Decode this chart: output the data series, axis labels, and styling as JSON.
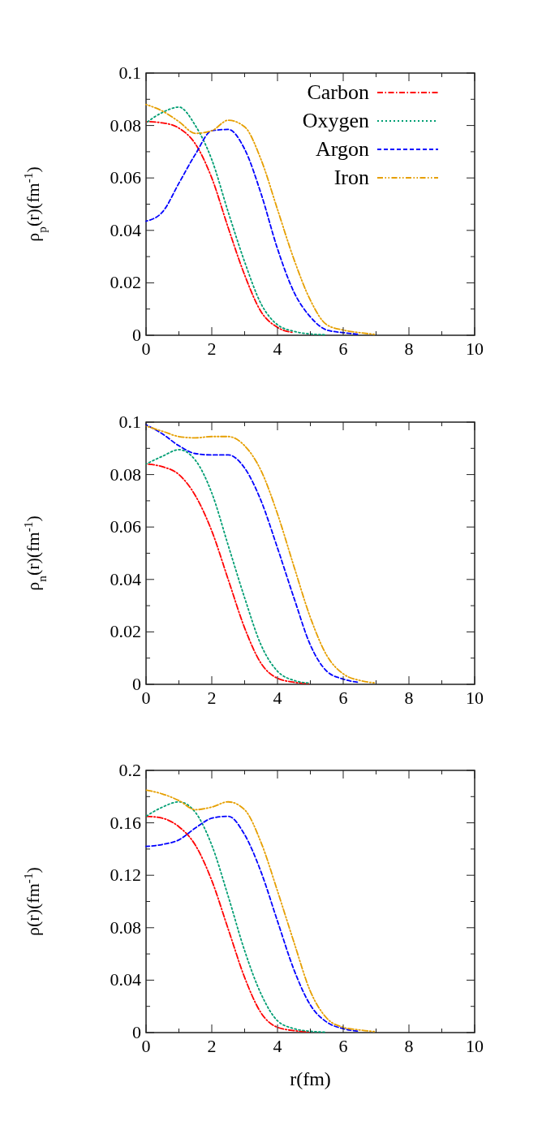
{
  "chart_data": [
    {
      "type": "line",
      "ylabel": "ρ$_{p}$(r)(fm$^{-1}$)",
      "x": [
        0,
        0.5,
        1,
        1.5,
        2,
        2.5,
        3,
        3.5,
        4,
        4.5,
        5,
        5.5,
        6,
        6.5,
        7
      ],
      "xlim": [
        0,
        10
      ],
      "ylim": [
        0,
        0.1
      ],
      "xticks": [
        0,
        {
          "value": 1,
          "label": null
        },
        2,
        {
          "value": 3,
          "label": null
        },
        4,
        {
          "value": 5,
          "label": null
        },
        6,
        {
          "value": 7,
          "label": null
        },
        8,
        {
          "value": 9,
          "label": null
        },
        10
      ],
      "yticks": [
        0,
        {
          "value": 0.01,
          "label": null
        },
        0.02,
        {
          "value": 0.03,
          "label": null
        },
        0.04,
        {
          "value": 0.05,
          "label": null
        },
        0.06,
        {
          "value": 0.07,
          "label": null
        },
        0.08,
        {
          "value": 0.09,
          "label": null
        },
        0.1
      ],
      "legend": "top right",
      "grid": false,
      "series": [
        {
          "name": "Carbon",
          "color": "#ff0000",
          "line_style": "dashdot",
          "values": [
            0.0815,
            0.081,
            0.079,
            0.073,
            0.06,
            0.041,
            0.023,
            0.009,
            0.003,
            0.001,
            null,
            null,
            null,
            null,
            null
          ]
        },
        {
          "name": "Oxygen",
          "color": "#009e73",
          "line_style": "dotted",
          "values": [
            0.081,
            0.085,
            0.087,
            0.08,
            0.067,
            0.047,
            0.028,
            0.012,
            0.004,
            0.0015,
            0.0005,
            0.0002,
            null,
            null,
            null
          ]
        },
        {
          "name": "Argon",
          "color": "#0000ff",
          "line_style": "dashed",
          "values": [
            0.0435,
            0.047,
            0.058,
            0.069,
            0.078,
            0.0785,
            0.071,
            0.054,
            0.033,
            0.0165,
            0.007,
            0.002,
            0.001,
            0.0003,
            null
          ]
        },
        {
          "name": "Iron",
          "color": "#e69f00",
          "line_style": "dashdotdot",
          "values": [
            0.088,
            0.0855,
            0.0815,
            0.077,
            0.078,
            0.082,
            0.0795,
            0.067,
            0.048,
            0.029,
            0.0134,
            0.004,
            0.002,
            0.001,
            0.0003
          ]
        }
      ]
    },
    {
      "type": "line",
      "ylabel": "ρ$_{n}$(r)(fm$^{-1}$)",
      "x": [
        0,
        0.5,
        1,
        1.5,
        2,
        2.5,
        3,
        3.5,
        4,
        4.5,
        5,
        5.5,
        6,
        6.5,
        7
      ],
      "xlim": [
        0,
        10
      ],
      "ylim": [
        0,
        0.1
      ],
      "xticks": [
        0,
        {
          "value": 1,
          "label": null
        },
        2,
        {
          "value": 3,
          "label": null
        },
        4,
        {
          "value": 5,
          "label": null
        },
        6,
        {
          "value": 7,
          "label": null
        },
        8,
        {
          "value": 9,
          "label": null
        },
        10
      ],
      "yticks": [
        0,
        {
          "value": 0.01,
          "label": null
        },
        0.02,
        {
          "value": 0.03,
          "label": null
        },
        0.04,
        {
          "value": 0.05,
          "label": null
        },
        0.06,
        {
          "value": 0.07,
          "label": null
        },
        0.08,
        {
          "value": 0.09,
          "label": null
        },
        0.1
      ],
      "grid": false,
      "series": [
        {
          "color": "#ff0000",
          "line_style": "dashdot",
          "values": [
            0.084,
            0.083,
            0.08,
            0.072,
            0.0585,
            0.04,
            0.0215,
            0.008,
            0.0023,
            0.0008,
            0.0002,
            null,
            null,
            null,
            null
          ]
        },
        {
          "color": "#009e73",
          "line_style": "dotted",
          "values": [
            0.084,
            0.087,
            0.0895,
            0.0855,
            0.073,
            0.053,
            0.033,
            0.015,
            0.005,
            0.0015,
            0.0004,
            null,
            null,
            null,
            null
          ]
        },
        {
          "color": "#0000ff",
          "line_style": "dashed",
          "values": [
            0.099,
            0.0955,
            0.091,
            0.088,
            0.0875,
            0.0875,
            0.0825,
            0.07,
            0.052,
            0.033,
            0.015,
            0.005,
            0.002,
            0.0007,
            null
          ]
        },
        {
          "color": "#e69f00",
          "line_style": "dashdotdot",
          "values": [
            0.0985,
            0.0965,
            0.0945,
            0.094,
            0.0945,
            0.0945,
            0.091,
            0.0815,
            0.065,
            0.045,
            0.0255,
            0.011,
            0.004,
            0.0015,
            0.0005
          ]
        }
      ]
    },
    {
      "type": "line",
      "xlabel": "r(fm)",
      "ylabel": "ρ(r)(fm$^{-1}$)",
      "x": [
        0,
        0.5,
        1,
        1.5,
        2,
        2.5,
        3,
        3.5,
        4,
        4.5,
        5,
        5.5,
        6,
        6.5,
        7
      ],
      "xlim": [
        0,
        10
      ],
      "ylim": [
        0,
        0.2
      ],
      "xticks": [
        0,
        {
          "value": 1,
          "label": null
        },
        2,
        {
          "value": 3,
          "label": null
        },
        4,
        {
          "value": 5,
          "label": null
        },
        6,
        {
          "value": 7,
          "label": null
        },
        8,
        {
          "value": 9,
          "label": null
        },
        10
      ],
      "yticks": [
        0,
        {
          "value": 0.02,
          "label": null
        },
        0.04,
        {
          "value": 0.06,
          "label": null
        },
        0.08,
        {
          "value": 0.1,
          "label": null
        },
        0.12,
        {
          "value": 0.14,
          "label": null
        },
        0.16,
        {
          "value": 0.18,
          "label": null
        },
        0.2
      ],
      "grid": false,
      "series": [
        {
          "color": "#ff0000",
          "line_style": "dashdot",
          "values": [
            0.165,
            0.1635,
            0.157,
            0.143,
            0.116,
            0.079,
            0.042,
            0.015,
            0.004,
            0.0015,
            0.0005,
            null,
            null,
            null,
            null
          ]
        },
        {
          "color": "#009e73",
          "line_style": "dotted",
          "values": [
            0.165,
            0.172,
            0.176,
            0.168,
            0.143,
            0.104,
            0.0625,
            0.0295,
            0.009,
            0.003,
            0.001,
            0.0003,
            null,
            null,
            null
          ]
        },
        {
          "color": "#0000ff",
          "line_style": "dashed",
          "values": [
            0.142,
            0.1435,
            0.147,
            0.156,
            0.1635,
            0.165,
            0.151,
            0.1225,
            0.085,
            0.048,
            0.021,
            0.008,
            0.003,
            0.001,
            null
          ]
        },
        {
          "color": "#e69f00",
          "line_style": "dashdotdot",
          "values": [
            0.185,
            0.182,
            0.177,
            0.17,
            0.172,
            0.176,
            0.17,
            0.145,
            0.108,
            0.069,
            0.0315,
            0.011,
            0.004,
            0.002,
            0.0007
          ]
        }
      ]
    }
  ]
}
